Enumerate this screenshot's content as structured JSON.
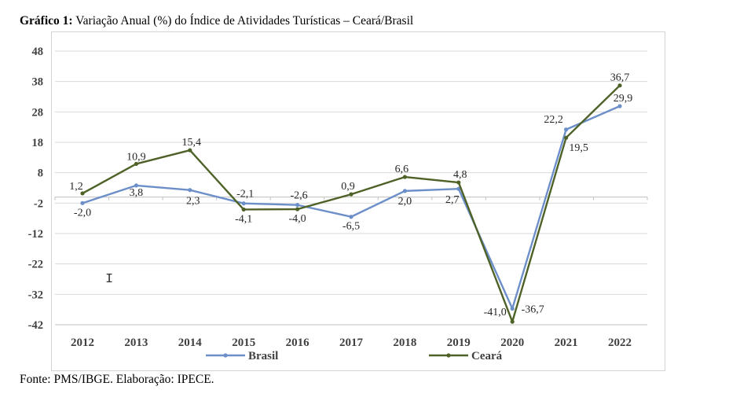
{
  "caption": {
    "bold": "Gráfico 1:",
    "text": "Variação Anual (%) do Índice de Atividades Turísticas – Ceará/Brasil"
  },
  "source": "Fonte: PMS/IBGE. Elaboração: IPECE.",
  "colors": {
    "brasil": "#6d8fc9",
    "ceara": "#4e6228",
    "grid": "#d9d9d9",
    "axis": "#bfbfbf"
  },
  "chart_data": {
    "type": "line",
    "title": "",
    "xlabel": "",
    "ylabel": "",
    "categories": [
      "2012",
      "2013",
      "2014",
      "2015",
      "2016",
      "2017",
      "2018",
      "2019",
      "2020",
      "2021",
      "2022"
    ],
    "y_ticks": [
      48,
      38,
      28,
      18,
      8,
      -2,
      -12,
      -22,
      -32,
      -42
    ],
    "ylim": [
      -42,
      48
    ],
    "grid": true,
    "legend_position": "bottom",
    "series": [
      {
        "name": "Brasil",
        "color": "#6d8fc9",
        "values": [
          -2.0,
          3.8,
          2.3,
          -2.1,
          -2.6,
          -6.5,
          2.0,
          2.7,
          -36.7,
          22.2,
          29.9
        ],
        "labels": [
          "-2,0",
          "3,8",
          "2,3",
          "-2,1",
          "-2,6",
          "-6,5",
          "2,0",
          "2,7",
          "-36,7",
          "22,2",
          "29,9"
        ]
      },
      {
        "name": "Ceará",
        "color": "#4e6228",
        "values": [
          1.2,
          10.9,
          15.4,
          -4.1,
          -4.0,
          0.9,
          6.6,
          4.8,
          -41.0,
          19.5,
          36.7
        ],
        "labels": [
          "1,2",
          "10,9",
          "15,4",
          "-4,1",
          "-4,0",
          "0,9",
          "6,6",
          "4,8",
          "-41,0",
          "19,5",
          "36,7"
        ]
      }
    ]
  }
}
